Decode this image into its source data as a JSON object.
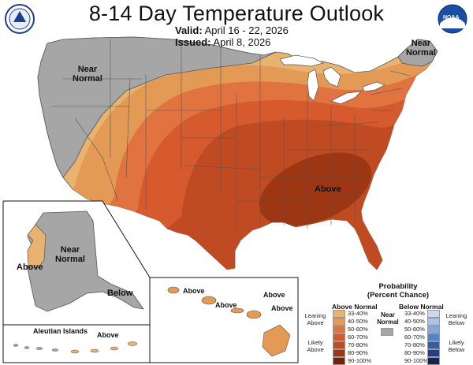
{
  "header": {
    "title": "8-14 Day Temperature Outlook",
    "valid_label": "Valid:",
    "valid_value": "April 16 - 22, 2026",
    "issued_label": "Issued:",
    "issued_value": "April 8, 2026"
  },
  "logos": {
    "left": "doc-seal",
    "right": "noaa-logo",
    "right_text": "NOAA"
  },
  "map_labels": {
    "conus_near_normal": [
      "Near",
      "Normal"
    ],
    "ne_near_normal": [
      "Near",
      "Normal"
    ],
    "conus_above": "Above",
    "alaska_near_normal": [
      "Near",
      "Normal"
    ],
    "alaska_above": "Above",
    "alaska_below": "Below",
    "aleutian_title": "Aleutian Islands",
    "aleutian_above": "Above",
    "hawaii_above_1": "Above",
    "hawaii_above_2": "Above",
    "hawaii_above_3": "Above",
    "hawaii_above_4": "Above"
  },
  "legend": {
    "title": [
      "Probability",
      "(Percent Chance)"
    ],
    "above_header": "Above Normal",
    "below_header": "Below Normal",
    "near_normal": [
      "Near",
      "Normal"
    ],
    "leaning_above": [
      "Leaning",
      "Above"
    ],
    "likely_above": [
      "Likely",
      "Above"
    ],
    "leaning_below": [
      "Leaning",
      "Below"
    ],
    "likely_below": [
      "Likely",
      "Below"
    ],
    "ranges": [
      "33-40%",
      "40-50%",
      "50-60%",
      "60-70%",
      "70-80%",
      "80-90%",
      "90-100%"
    ],
    "above_colors": [
      "#e8b270",
      "#e39a55",
      "#e07340",
      "#d65a2e",
      "#c04a22",
      "#9c3613",
      "#6e230b"
    ],
    "below_colors": [
      "#cbd8ef",
      "#a8c2e8",
      "#7fa8dc",
      "#4f85cc",
      "#2e5fa8",
      "#203f86",
      "#17234f"
    ],
    "near_normal_color": "#a6a6a6"
  }
}
